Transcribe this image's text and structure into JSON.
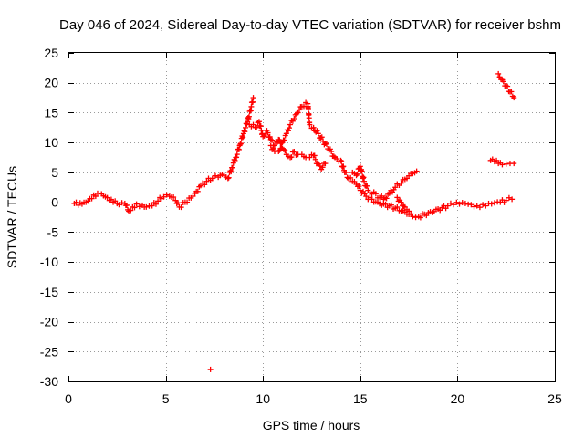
{
  "chart_data": {
    "type": "scatter",
    "title": "Day 046 of 2024, Sidereal Day-to-day VTEC variation (SDTVAR) for receiver bshm",
    "xlabel": "GPS time / hours",
    "ylabel": "SDTVAR / TECUs",
    "xlim": [
      0,
      25
    ],
    "ylim": [
      -30,
      25
    ],
    "xticks": [
      "0",
      "5",
      "10",
      "15",
      "20",
      "25"
    ],
    "yticks": [
      "-30",
      "-25",
      "-20",
      "-15",
      "-10",
      "-5",
      "0",
      "5",
      "10",
      "15",
      "20",
      "25"
    ],
    "grid": true,
    "marker": "+",
    "series": [
      {
        "name": "SDTVAR",
        "color": "#ff0000",
        "points": [
          [
            0.3,
            -0.2
          ],
          [
            0.5,
            -0.5
          ],
          [
            0.7,
            -0.3
          ],
          [
            0.9,
            0.0
          ],
          [
            1.1,
            0.6
          ],
          [
            1.3,
            1.2
          ],
          [
            1.5,
            1.5
          ],
          [
            1.7,
            1.4
          ],
          [
            1.9,
            0.9
          ],
          [
            2.1,
            0.3
          ],
          [
            2.3,
            0.0
          ],
          [
            2.6,
            -0.4
          ],
          [
            2.9,
            -0.2
          ],
          [
            3.1,
            -1.5
          ],
          [
            3.3,
            -0.8
          ],
          [
            3.5,
            -0.3
          ],
          [
            3.8,
            -0.5
          ],
          [
            4.0,
            -0.8
          ],
          [
            4.3,
            -0.6
          ],
          [
            4.6,
            0.2
          ],
          [
            4.9,
            0.9
          ],
          [
            5.2,
            1.0
          ],
          [
            5.5,
            0.3
          ],
          [
            5.7,
            -0.8
          ],
          [
            6.0,
            0.0
          ],
          [
            6.2,
            0.7
          ],
          [
            6.5,
            1.5
          ],
          [
            6.8,
            2.8
          ],
          [
            7.1,
            3.5
          ],
          [
            7.4,
            4.0
          ],
          [
            7.7,
            4.2
          ],
          [
            8.0,
            4.5
          ],
          [
            8.2,
            4.0
          ],
          [
            8.4,
            5.8
          ],
          [
            8.6,
            7.5
          ],
          [
            8.8,
            9.5
          ],
          [
            9.0,
            11.5
          ],
          [
            9.2,
            13.5
          ],
          [
            9.4,
            16.0
          ],
          [
            9.5,
            17.5
          ],
          [
            7.3,
            -28.0
          ],
          [
            9.3,
            13.0
          ],
          [
            9.6,
            12.5
          ],
          [
            9.8,
            13.5
          ],
          [
            10.0,
            11.0
          ],
          [
            10.2,
            12.0
          ],
          [
            10.4,
            10.5
          ],
          [
            10.6,
            9.5
          ],
          [
            10.8,
            10.5
          ],
          [
            11.0,
            9.0
          ],
          [
            11.2,
            8.0
          ],
          [
            11.4,
            7.5
          ],
          [
            11.6,
            8.5
          ],
          [
            11.8,
            8.0
          ],
          [
            12.0,
            8.0
          ],
          [
            12.2,
            7.5
          ],
          [
            12.4,
            7.5
          ],
          [
            12.6,
            7.8
          ],
          [
            12.8,
            6.5
          ],
          [
            13.0,
            5.5
          ],
          [
            13.2,
            6.5
          ],
          [
            10.4,
            9.5
          ],
          [
            10.6,
            8.5
          ],
          [
            10.8,
            8.5
          ],
          [
            11.0,
            10.0
          ],
          [
            11.2,
            11.5
          ],
          [
            11.4,
            13.0
          ],
          [
            11.6,
            14.0
          ],
          [
            11.8,
            15.0
          ],
          [
            12.0,
            16.0
          ],
          [
            12.3,
            16.5
          ],
          [
            12.4,
            13.0
          ],
          [
            12.6,
            12.5
          ],
          [
            13.7,
            7.5
          ],
          [
            14.0,
            7.0
          ],
          [
            14.2,
            5.0
          ],
          [
            14.4,
            4.0
          ],
          [
            14.6,
            3.5
          ],
          [
            14.8,
            3.0
          ],
          [
            15.0,
            2.0
          ],
          [
            15.3,
            1.0
          ],
          [
            15.6,
            0.5
          ],
          [
            15.9,
            0.0
          ],
          [
            16.2,
            -0.3
          ],
          [
            16.5,
            -0.6
          ],
          [
            16.8,
            -1.0
          ],
          [
            17.1,
            -1.5
          ],
          [
            17.4,
            -2.0
          ],
          [
            17.7,
            -2.4
          ],
          [
            18.0,
            -2.4
          ],
          [
            18.3,
            -2.0
          ],
          [
            18.6,
            -1.6
          ],
          [
            18.9,
            -1.2
          ],
          [
            19.2,
            -0.9
          ],
          [
            19.5,
            -0.6
          ],
          [
            19.8,
            -0.4
          ],
          [
            20.1,
            -0.3
          ],
          [
            20.4,
            -0.2
          ],
          [
            20.7,
            -0.4
          ],
          [
            21.0,
            -0.6
          ],
          [
            21.3,
            -0.4
          ],
          [
            21.6,
            -0.2
          ],
          [
            21.9,
            -0.1
          ],
          [
            22.2,
            0.0
          ],
          [
            22.5,
            0.3
          ],
          [
            22.8,
            0.5
          ],
          [
            14.6,
            5.0
          ],
          [
            14.8,
            4.5
          ],
          [
            15.0,
            6.0
          ],
          [
            15.2,
            3.5
          ],
          [
            15.4,
            2.0
          ],
          [
            16.2,
            0.5
          ],
          [
            16.5,
            1.5
          ],
          [
            16.8,
            2.5
          ],
          [
            17.1,
            3.2
          ],
          [
            17.4,
            4.0
          ],
          [
            17.7,
            4.8
          ],
          [
            17.9,
            5.2
          ],
          [
            16.9,
            0.8
          ],
          [
            17.1,
            0.0
          ],
          [
            17.3,
            -0.8
          ],
          [
            17.5,
            -1.5
          ],
          [
            21.7,
            7.0
          ],
          [
            21.9,
            6.8
          ],
          [
            22.1,
            6.5
          ],
          [
            22.3,
            6.3
          ],
          [
            22.5,
            6.4
          ],
          [
            22.7,
            6.5
          ],
          [
            22.9,
            6.5
          ],
          [
            22.1,
            21.5
          ],
          [
            22.3,
            20.5
          ],
          [
            22.5,
            19.5
          ],
          [
            22.7,
            18.5
          ],
          [
            22.9,
            17.5
          ]
        ]
      }
    ]
  }
}
